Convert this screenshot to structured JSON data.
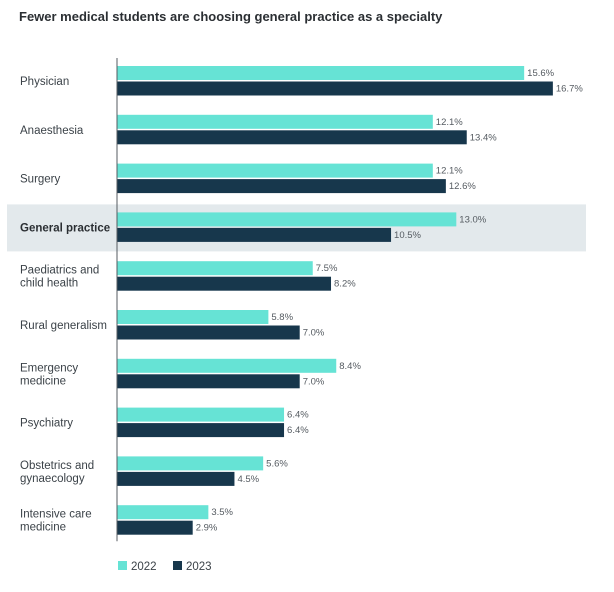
{
  "title": "Fewer medical students are choosing general practice as a specialty",
  "colors": {
    "y2022": "#66e3d5",
    "y2023": "#17374c",
    "highlight": "#e3e9ec",
    "axis": "#555b61"
  },
  "legend": [
    {
      "label": "2022",
      "color": "#66e3d5"
    },
    {
      "label": "2023",
      "color": "#17374c"
    }
  ],
  "chart_data": {
    "type": "bar",
    "orientation": "horizontal",
    "categories": [
      [
        "Physician"
      ],
      [
        "Anaesthesia"
      ],
      [
        "Surgery"
      ],
      [
        "General practice"
      ],
      [
        "Paediatrics and",
        "child health"
      ],
      [
        "Rural generalism"
      ],
      [
        "Emergency",
        "medicine"
      ],
      [
        "Psychiatry"
      ],
      [
        "Obstetrics and",
        "gynaecology"
      ],
      [
        "Intensive care",
        "medicine"
      ]
    ],
    "highlight_category": 3,
    "series": [
      {
        "name": "2022",
        "values": [
          15.6,
          12.1,
          12.1,
          13.0,
          7.5,
          5.8,
          8.4,
          6.4,
          5.6,
          3.5
        ],
        "labels": [
          "15.6%",
          "12.1%",
          "12.1%",
          "13.0%",
          "7.5%",
          "5.8%",
          "8.4%",
          "6.4%",
          "5.6%",
          "3.5%"
        ]
      },
      {
        "name": "2023",
        "values": [
          16.7,
          13.4,
          12.6,
          10.5,
          8.2,
          7.0,
          7.0,
          6.4,
          4.5,
          2.9
        ],
        "labels": [
          "16.7%",
          "13.4%",
          "12.6%",
          "10.5%",
          "8.2%",
          "7.0%",
          "7.0%",
          "6.4%",
          "4.5%",
          "2.9%"
        ]
      }
    ],
    "xlim": [
      0,
      20
    ],
    "legend_position": "bottom-left",
    "grid": false
  }
}
